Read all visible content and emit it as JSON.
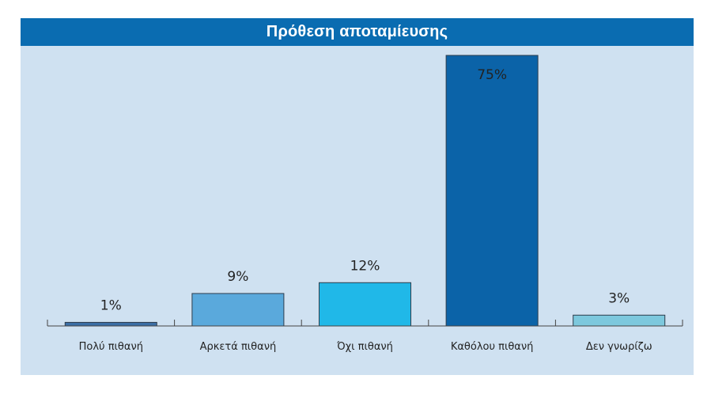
{
  "chart_data": {
    "type": "bar",
    "title": "Πρόθεση αποταμίευσης",
    "categories": [
      "Πολύ πιθανή",
      "Αρκετά πιθανή",
      "Όχι πιθανή",
      "Καθόλου πιθανή",
      "Δεν γνωρίζω"
    ],
    "values": [
      1,
      9,
      12,
      75,
      3
    ],
    "value_labels": [
      "1%",
      "9%",
      "12%",
      "75%",
      "3%"
    ],
    "unit": "%",
    "ylim": [
      0,
      75
    ],
    "colors": [
      "#3b6ea5",
      "#5aa9dc",
      "#20b8e8",
      "#0b63a8",
      "#7dc8dd"
    ],
    "grid": false,
    "legend": "none"
  },
  "style": {
    "title_background": "#0a6cb1",
    "plot_background": "#cfe1f1",
    "title_color": "#ffffff"
  }
}
